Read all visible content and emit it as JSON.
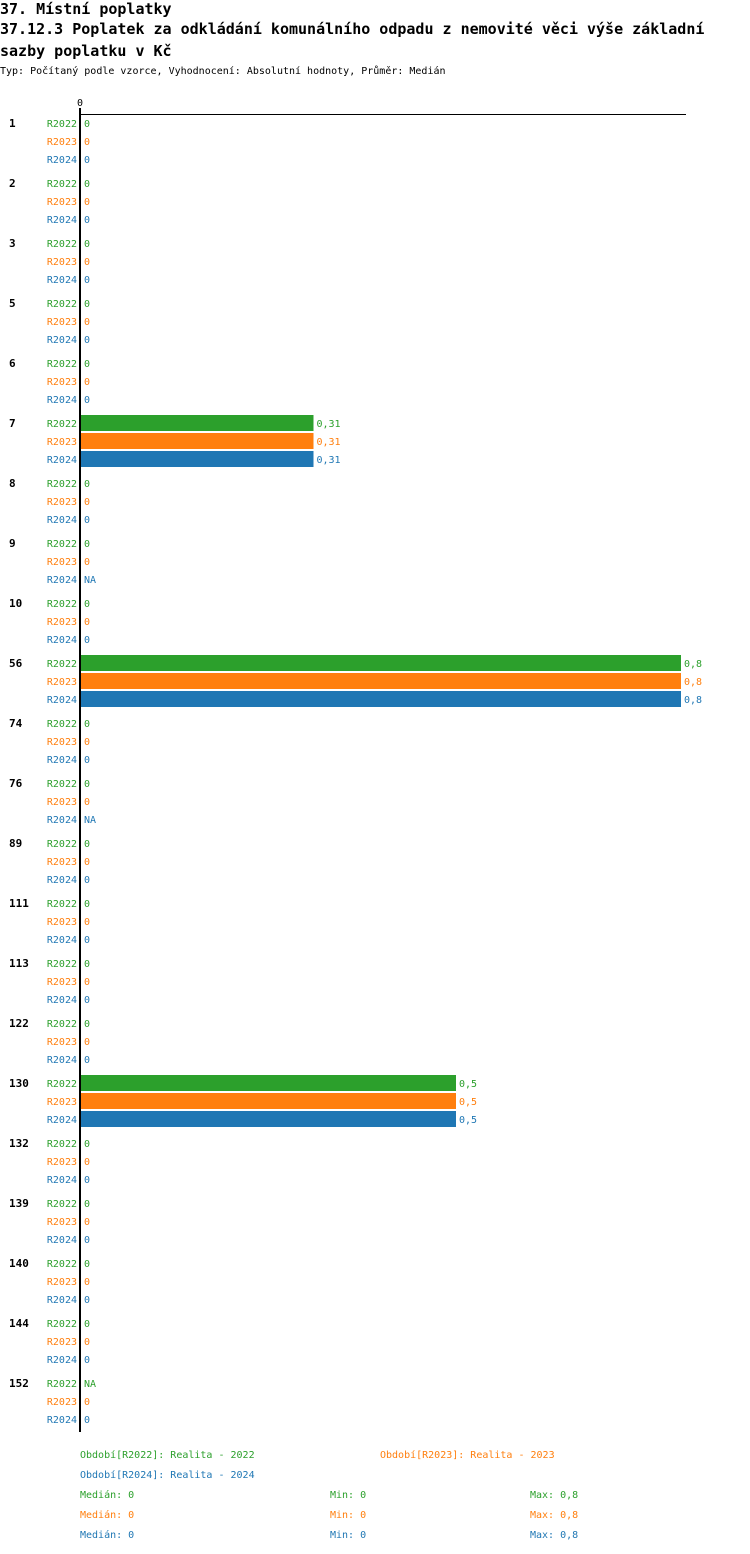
{
  "header": {
    "title_line1": "37. Místní poplatky",
    "title_line2": "37.12.3 Poplatek za odkládání komunálního odpadu z nemovité věci   výše základní",
    "title_line3": "sazby poplatku v Kč",
    "subtitle": "Typ: Počítaný podle vzorce, Vyhodnocení: Absolutní hodnoty, Průměr: Medián"
  },
  "colors": {
    "R2022": "#2ca02c",
    "R2023": "#ff7f0e",
    "R2024": "#1f77b4"
  },
  "chart_data": {
    "type": "bar",
    "orientation": "horizontal",
    "xlim": [
      0,
      0.8
    ],
    "x_ticks": [
      "0"
    ],
    "categories": [
      "1",
      "2",
      "3",
      "5",
      "6",
      "7",
      "8",
      "9",
      "10",
      "56",
      "74",
      "76",
      "89",
      "111",
      "113",
      "122",
      "130",
      "132",
      "139",
      "140",
      "144",
      "152"
    ],
    "series": [
      {
        "name": "R2022",
        "values": [
          0,
          0,
          0,
          0,
          0,
          0.31,
          0,
          0,
          0,
          0.8,
          0,
          0,
          0,
          0,
          0,
          0,
          0.5,
          0,
          0,
          0,
          0,
          null
        ],
        "labels": [
          "0",
          "0",
          "0",
          "0",
          "0",
          "0,31",
          "0",
          "0",
          "0",
          "0,8",
          "0",
          "0",
          "0",
          "0",
          "0",
          "0",
          "0,5",
          "0",
          "0",
          "0",
          "0",
          "NA"
        ]
      },
      {
        "name": "R2023",
        "values": [
          0,
          0,
          0,
          0,
          0,
          0.31,
          0,
          0,
          0,
          0.8,
          0,
          0,
          0,
          0,
          0,
          0,
          0.5,
          0,
          0,
          0,
          0,
          0
        ],
        "labels": [
          "0",
          "0",
          "0",
          "0",
          "0",
          "0,31",
          "0",
          "0",
          "0",
          "0,8",
          "0",
          "0",
          "0",
          "0",
          "0",
          "0",
          "0,5",
          "0",
          "0",
          "0",
          "0",
          "0"
        ]
      },
      {
        "name": "R2024",
        "values": [
          0,
          0,
          0,
          0,
          0,
          0.31,
          0,
          null,
          0,
          0.8,
          0,
          null,
          0,
          0,
          0,
          0,
          0.5,
          0,
          0,
          0,
          0,
          0
        ],
        "labels": [
          "0",
          "0",
          "0",
          "0",
          "0",
          "0,31",
          "0",
          "NA",
          "0",
          "0,8",
          "0",
          "NA",
          "0",
          "0",
          "0",
          "0",
          "0,5",
          "0",
          "0",
          "0",
          "0",
          "0"
        ]
      }
    ]
  },
  "legend": {
    "items": [
      {
        "text": "Období[R2022]: Realita - 2022",
        "series": "R2022"
      },
      {
        "text": "Období[R2023]: Realita - 2023",
        "series": "R2023"
      },
      {
        "text": "Období[R2024]: Realita - 2024",
        "series": "R2024"
      }
    ],
    "stats": [
      {
        "series": "R2022",
        "median": "Medián: 0",
        "min": "Min: 0",
        "max": "Max: 0,8"
      },
      {
        "series": "R2023",
        "median": "Medián: 0",
        "min": "Min: 0",
        "max": "Max: 0,8"
      },
      {
        "series": "R2024",
        "median": "Medián: 0",
        "min": "Min: 0",
        "max": "Max: 0,8"
      }
    ]
  }
}
